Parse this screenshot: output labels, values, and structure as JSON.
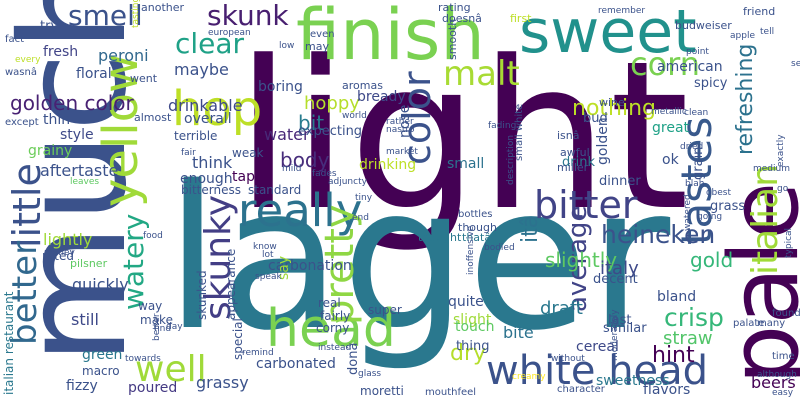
{
  "word_cloud": {
    "words": [
      {
        "text": "light",
        "color": "#440154"
      },
      {
        "text": "lager",
        "color": "#2a788e"
      },
      {
        "text": "much",
        "color": "#3b528b"
      },
      {
        "text": "finish",
        "color": "#7ad151"
      },
      {
        "text": "sweet",
        "color": "#21918c"
      },
      {
        "text": "pale",
        "color": "#440154"
      },
      {
        "text": "head",
        "color": "#7ad151"
      },
      {
        "text": "white head",
        "color": "#3b528b"
      },
      {
        "text": "yellow",
        "color": "#a0da39"
      },
      {
        "text": "hop",
        "color": "#bddf26"
      },
      {
        "text": "really",
        "color": "#2c728e"
      },
      {
        "text": "tastes",
        "color": "#38598c"
      },
      {
        "text": "little",
        "color": "#3b528b"
      },
      {
        "text": "better",
        "color": "#31688e"
      },
      {
        "text": "italian",
        "color": "#a0da39"
      },
      {
        "text": "pretty",
        "color": "#8fd744"
      },
      {
        "text": "skunky",
        "color": "#433e85"
      },
      {
        "text": "bitter",
        "color": "#414487"
      },
      {
        "text": "color",
        "color": "#3b528b"
      },
      {
        "text": "malt",
        "color": "#a8db34"
      },
      {
        "text": "corn",
        "color": "#7ad151"
      },
      {
        "text": "well",
        "color": "#a0da39"
      },
      {
        "text": "clear",
        "color": "#1fa187"
      },
      {
        "text": "smell",
        "color": "#3b528b"
      },
      {
        "text": "skunk",
        "color": "#481f70"
      },
      {
        "text": "watery",
        "color": "#22a884"
      },
      {
        "text": "average",
        "color": "#414487"
      },
      {
        "text": "heineken",
        "color": "#3b528b"
      },
      {
        "text": "crisp",
        "color": "#35b779"
      },
      {
        "text": "refreshing",
        "color": "#2c728e"
      },
      {
        "text": "nothing",
        "color": "#bddf26"
      },
      {
        "text": "golden color",
        "color": "#482173"
      },
      {
        "text": "itâ",
        "color": "#2c728e"
      },
      {
        "text": "slightly",
        "color": "#5ec962"
      },
      {
        "text": "bit",
        "color": "#287c8e"
      },
      {
        "text": "hint",
        "color": "#440154"
      },
      {
        "text": "dry",
        "color": "#b5de2b"
      },
      {
        "text": "gold",
        "color": "#35b779"
      },
      {
        "text": "draft",
        "color": "#2a788e"
      },
      {
        "text": "italy",
        "color": "#3e4989"
      },
      {
        "text": "straw",
        "color": "#52c569"
      },
      {
        "text": "body",
        "color": "#472d7b"
      },
      {
        "text": "hoppy",
        "color": "#b5de2b"
      },
      {
        "text": "drinkable",
        "color": "#3e4989"
      },
      {
        "text": "water",
        "color": "#482878"
      },
      {
        "text": "aftertaste",
        "color": "#3b528b"
      },
      {
        "text": "lightly",
        "color": "#a0da39"
      },
      {
        "text": "quickly",
        "color": "#3b528b"
      },
      {
        "text": "still",
        "color": "#3e4989"
      },
      {
        "text": "green",
        "color": "#2a788e"
      },
      {
        "text": "grassy",
        "color": "#3b528b"
      },
      {
        "text": "carbonated",
        "color": "#3b528b"
      },
      {
        "text": "carbonation",
        "color": "#3b528b"
      },
      {
        "text": "beers",
        "color": "#440154"
      },
      {
        "text": "fizzy",
        "color": "#3b528b"
      },
      {
        "text": "poured",
        "color": "#443983"
      },
      {
        "text": "cereal",
        "color": "#3e4989"
      },
      {
        "text": "slight",
        "color": "#a0da39"
      },
      {
        "text": "bite",
        "color": "#2c728e"
      },
      {
        "text": "thin",
        "color": "#3b528b"
      },
      {
        "text": "grainy",
        "color": "#6ccd5a"
      },
      {
        "text": "style",
        "color": "#3e4989"
      },
      {
        "text": "floral",
        "color": "#3b528b"
      },
      {
        "text": "fresh",
        "color": "#414487"
      },
      {
        "text": "peroni",
        "color": "#31688e"
      },
      {
        "text": "try",
        "color": "#3b528b"
      },
      {
        "text": "maybe",
        "color": "#3b528b"
      },
      {
        "text": "overall",
        "color": "#3b528b"
      },
      {
        "text": "boring",
        "color": "#3b528b"
      },
      {
        "text": "bready",
        "color": "#3e4989"
      },
      {
        "text": "expecting",
        "color": "#3b528b"
      },
      {
        "text": "think",
        "color": "#3b528b"
      },
      {
        "text": "enough",
        "color": "#3b528b"
      },
      {
        "text": "tap",
        "color": "#440154"
      },
      {
        "text": "drinking",
        "color": "#bddf26"
      },
      {
        "text": "small",
        "color": "#2c728e"
      },
      {
        "text": "nose",
        "color": "#3b528b"
      },
      {
        "text": "american",
        "color": "#3b528b"
      },
      {
        "text": "spicy",
        "color": "#3b528b"
      },
      {
        "text": "great",
        "color": "#1fa187"
      },
      {
        "text": "bud",
        "color": "#3b528b"
      },
      {
        "text": "golden",
        "color": "#3b528b"
      },
      {
        "text": "ok",
        "color": "#3b528b"
      },
      {
        "text": "grain",
        "color": "#3b528b"
      },
      {
        "text": "dinner",
        "color": "#3b528b"
      },
      {
        "text": "drink",
        "color": "#2a788e"
      },
      {
        "text": "grass",
        "color": "#3b528b"
      },
      {
        "text": "decent",
        "color": "#3b528b"
      },
      {
        "text": "bland",
        "color": "#3b528b"
      },
      {
        "text": "quite",
        "color": "#3b528b"
      },
      {
        "text": "touch",
        "color": "#5ec962"
      },
      {
        "text": "thing",
        "color": "#3b528b"
      },
      {
        "text": "similar",
        "color": "#3b528b"
      },
      {
        "text": "last",
        "color": "#3b528b"
      },
      {
        "text": "mouthfeel",
        "color": "#3b528b"
      },
      {
        "text": "sweetness",
        "color": "#2a788e"
      },
      {
        "text": "character",
        "color": "#3b528b"
      },
      {
        "text": "flavors",
        "color": "#3b528b"
      },
      {
        "text": "moretti",
        "color": "#3b528b"
      },
      {
        "text": "donâ",
        "color": "#3b528b"
      },
      {
        "text": "super",
        "color": "#3b528b"
      },
      {
        "text": "real",
        "color": "#3b528b"
      },
      {
        "text": "fairly",
        "color": "#3b528b"
      },
      {
        "text": "corny",
        "color": "#3b528b"
      },
      {
        "text": "say",
        "color": "#a0da39"
      },
      {
        "text": "skunked",
        "color": "#3b528b"
      },
      {
        "text": "appearance",
        "color": "#3b528b"
      },
      {
        "text": "make",
        "color": "#3b528b"
      },
      {
        "text": "special",
        "color": "#3b528b"
      },
      {
        "text": "way",
        "color": "#3b528b"
      },
      {
        "text": "macro",
        "color": "#3b528b"
      },
      {
        "text": "italian restaurant",
        "color": "#2a788e"
      },
      {
        "text": "rated",
        "color": "#3b528b"
      },
      {
        "text": "pilsner",
        "color": "#5ec962"
      },
      {
        "text": "bitterness",
        "color": "#3b528b"
      },
      {
        "text": "standard",
        "color": "#3b528b"
      },
      {
        "text": "terrible",
        "color": "#3b528b"
      },
      {
        "text": "weak",
        "color": "#3b528b"
      },
      {
        "text": "thought",
        "color": "#2a788e"
      },
      {
        "text": "thatâ",
        "color": "#2a788e"
      },
      {
        "text": "another",
        "color": "#3b528b"
      },
      {
        "text": "rating",
        "color": "#3b528b"
      },
      {
        "text": "doesnâ",
        "color": "#3b528b"
      },
      {
        "text": "first",
        "color": "#bddf26"
      },
      {
        "text": "budweiser",
        "color": "#3b528b"
      },
      {
        "text": "friend",
        "color": "#3b528b"
      },
      {
        "text": "wine",
        "color": "#3b528b"
      },
      {
        "text": "isnâ",
        "color": "#3b528b"
      },
      {
        "text": "awful",
        "color": "#3b528b"
      },
      {
        "text": "miller",
        "color": "#3b528b"
      },
      {
        "text": "though",
        "color": "#3b528b"
      },
      {
        "text": "bottles",
        "color": "#3b528b"
      },
      {
        "text": "went",
        "color": "#3b528b"
      },
      {
        "text": "almost",
        "color": "#3b528b"
      },
      {
        "text": "aromas",
        "color": "#3b528b"
      },
      {
        "text": "may",
        "color": "#3b528b"
      },
      {
        "text": "except",
        "color": "#3b528b"
      },
      {
        "text": "fact",
        "color": "#3b528b"
      },
      {
        "text": "wasnâ",
        "color": "#3b528b"
      },
      {
        "text": "every",
        "color": "#bddf26"
      },
      {
        "text": "tasting",
        "color": "#bddf26"
      },
      {
        "text": "european",
        "color": "#3b528b"
      },
      {
        "text": "even",
        "color": "#3b528b"
      },
      {
        "text": "low",
        "color": "#3b528b"
      },
      {
        "text": "smooth",
        "color": "#3b528b"
      },
      {
        "text": "remember",
        "color": "#3b528b"
      },
      {
        "text": "point",
        "color": "#3b528b"
      },
      {
        "text": "apple",
        "color": "#3b528b"
      },
      {
        "text": "tell",
        "color": "#3b528b"
      },
      {
        "text": "rather",
        "color": "#3b528b"
      },
      {
        "text": "world",
        "color": "#3b528b"
      },
      {
        "text": "metallic",
        "color": "#3b528b"
      },
      {
        "text": "clean",
        "color": "#3b528b"
      },
      {
        "text": "fading",
        "color": "#3b528b"
      },
      {
        "text": "nastro",
        "color": "#3b528b"
      },
      {
        "text": "market",
        "color": "#3b528b"
      },
      {
        "text": "description",
        "color": "#3b528b"
      },
      {
        "text": "dried",
        "color": "#3b528b"
      },
      {
        "text": "small white",
        "color": "#3b528b"
      },
      {
        "text": "medium",
        "color": "#3b528b"
      },
      {
        "text": "exactly",
        "color": "#3b528b"
      },
      {
        "text": "go",
        "color": "#3b528b"
      },
      {
        "text": "blah",
        "color": "#3b528b"
      },
      {
        "text": "obest",
        "color": "#3b528b"
      },
      {
        "text": "going",
        "color": "#3b528b"
      },
      {
        "text": "fades",
        "color": "#3b528b"
      },
      {
        "text": "adjuncty",
        "color": "#3b528b"
      },
      {
        "text": "mild",
        "color": "#3b528b"
      },
      {
        "text": "fair",
        "color": "#3b528b"
      },
      {
        "text": "leaves",
        "color": "#5ec962"
      },
      {
        "text": "tiny",
        "color": "#3b528b"
      },
      {
        "text": "end",
        "color": "#3b528b"
      },
      {
        "text": "food",
        "color": "#3b528b"
      },
      {
        "text": "money",
        "color": "#3b528b"
      },
      {
        "text": "know",
        "color": "#3b528b"
      },
      {
        "text": "lot",
        "color": "#3b528b"
      },
      {
        "text": "speak",
        "color": "#3b528b"
      },
      {
        "text": "bodied",
        "color": "#3b528b"
      },
      {
        "text": "inoffensive",
        "color": "#3b528b"
      },
      {
        "text": "better",
        "color": "#3b528b"
      },
      {
        "text": "day",
        "color": "#3b528b"
      },
      {
        "text": "find",
        "color": "#3b528b"
      },
      {
        "text": "towards",
        "color": "#3b528b"
      },
      {
        "text": "remind",
        "color": "#3b528b"
      },
      {
        "text": "instead",
        "color": "#3b528b"
      },
      {
        "text": "glass",
        "color": "#3b528b"
      },
      {
        "text": "without",
        "color": "#3b528b"
      },
      {
        "text": "creamy",
        "color": "#fde725"
      },
      {
        "text": "moderately",
        "color": "#3b528b"
      },
      {
        "text": "palate",
        "color": "#3b528b"
      },
      {
        "text": "found",
        "color": "#3b528b"
      },
      {
        "text": "many",
        "color": "#3b528b"
      },
      {
        "text": "time",
        "color": "#3b528b"
      },
      {
        "text": "although",
        "color": "#3b528b"
      },
      {
        "text": "easy",
        "color": "#3b528b"
      },
      {
        "text": "watered",
        "color": "#3b528b"
      },
      {
        "text": "typical",
        "color": "#3b528b"
      },
      {
        "text": "several",
        "color": "#3b528b"
      }
    ]
  }
}
